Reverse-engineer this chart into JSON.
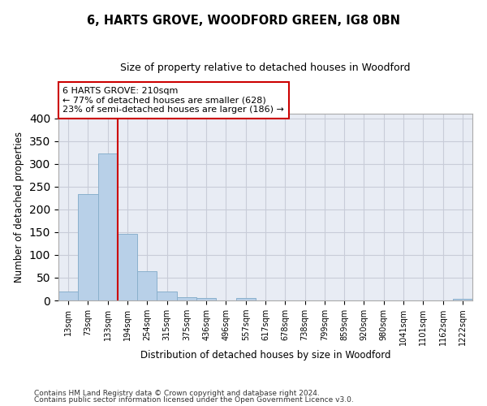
{
  "title1": "6, HARTS GROVE, WOODFORD GREEN, IG8 0BN",
  "title2": "Size of property relative to detached houses in Woodford",
  "xlabel": "Distribution of detached houses by size in Woodford",
  "ylabel": "Number of detached properties",
  "footnote1": "Contains HM Land Registry data © Crown copyright and database right 2024.",
  "footnote2": "Contains public sector information licensed under the Open Government Licence v3.0.",
  "bar_labels": [
    "13sqm",
    "73sqm",
    "133sqm",
    "194sqm",
    "254sqm",
    "315sqm",
    "375sqm",
    "436sqm",
    "496sqm",
    "557sqm",
    "617sqm",
    "678sqm",
    "738sqm",
    "799sqm",
    "859sqm",
    "920sqm",
    "980sqm",
    "1041sqm",
    "1101sqm",
    "1162sqm",
    "1222sqm"
  ],
  "bar_values": [
    20,
    234,
    322,
    147,
    64,
    20,
    8,
    5,
    0,
    5,
    0,
    0,
    0,
    0,
    0,
    0,
    0,
    0,
    0,
    0,
    4
  ],
  "bar_color": "#b8d0e8",
  "bar_edge_color": "#8ab0cc",
  "grid_color": "#c8ccd8",
  "bg_color": "#e8ecf4",
  "annotation_line1": "6 HARTS GROVE: 210sqm",
  "annotation_line2": "← 77% of detached houses are smaller (628)",
  "annotation_line3": "23% of semi-detached houses are larger (186) →",
  "vline_x": 2.5,
  "vline_color": "#cc0000",
  "annotation_box_color": "#cc0000",
  "ylim": [
    0,
    410
  ],
  "yticks": [
    0,
    50,
    100,
    150,
    200,
    250,
    300,
    350,
    400
  ]
}
